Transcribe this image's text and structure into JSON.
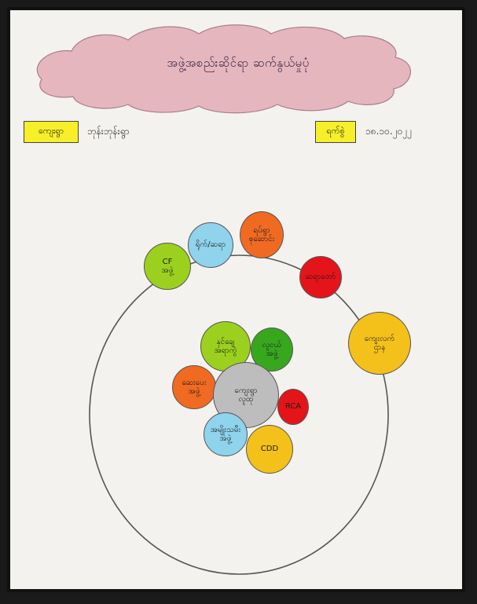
{
  "title": "အဖွဲ့အစည်းဆိုင်ရာ ဆက်နွယ်မှုပုံ",
  "village": {
    "label": "ကျေးရွာ",
    "value": "ဘုန်းဘုန်းရွာ"
  },
  "date": {
    "label": "ရက်စွဲ",
    "value": "၁၈.၁၀.၂၀၂၂"
  },
  "nodes": {
    "center": "ကျေးရွာ\nလူထု",
    "cf": "CF\nအဖွဲ့",
    "blue_top": "ရိုက်/ဆရာ",
    "orange_top": "ရပ်ရွာ\nစုဆောင်း",
    "red_top": "ဆရာတော်",
    "yellow_right": "ကျေးလက်\nဌာန",
    "green_light": "နှင်ချေ\nအရာကွဲ",
    "green_dark": "လူငယ်\nအဖွဲ့",
    "orange_left": "ဆေးပေး\nအဖွဲ့",
    "rca": "RCA",
    "blue_bottom": "အမျိုးသမီး\nအဖွဲ့",
    "cdd": "CDD"
  },
  "colors": {
    "cloud": "#e6b6bf",
    "label_box": "#f7ef2a",
    "green_light": "#9bd11e",
    "green_dark": "#37a81e",
    "blue": "#8fd3ec",
    "orange": "#f06a22",
    "red": "#e5141a",
    "yellow": "#f4c01a",
    "grey": "#bdbdbd"
  }
}
